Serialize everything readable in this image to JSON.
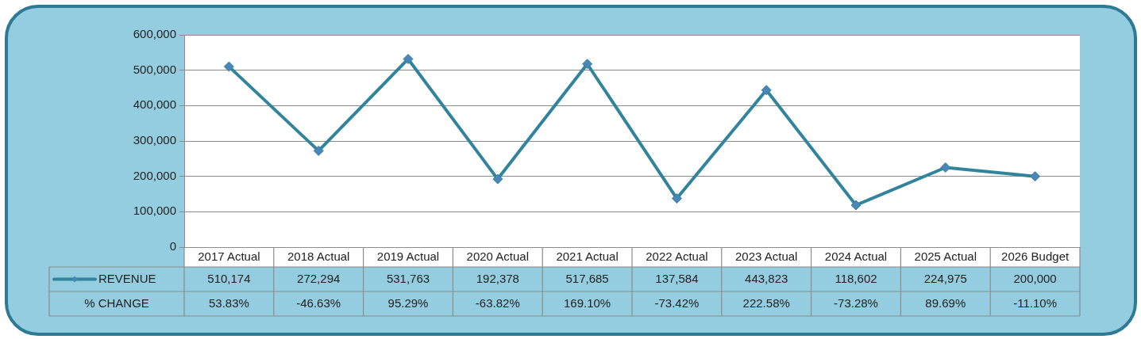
{
  "chart_data": {
    "type": "line",
    "categories": [
      "2017 Actual",
      "2018 Actual",
      "2019 Actual",
      "2020 Actual",
      "2021 Actual",
      "2022 Actual",
      "2023 Actual",
      "2024 Actual",
      "2025 Actual",
      "2026 Budget"
    ],
    "series": [
      {
        "name": "REVENUE",
        "color": "#31849b",
        "values": [
          510174,
          272294,
          531763,
          192378,
          517685,
          137584,
          443823,
          118602,
          224975,
          200000
        ],
        "value_labels": [
          "510,174",
          "272,294",
          "531,763",
          "192,378",
          "517,685",
          "137,584",
          "443,823",
          "118,602",
          "224,975",
          "200,000"
        ]
      }
    ],
    "annotations": [
      "% CHANGE",
      "53.83%",
      "-46.63%",
      "95.29%",
      "-63.82%",
      "169.10%",
      "-73.42%",
      "222.58%",
      "-73.28%",
      "89.69%",
      "-11.10%"
    ],
    "ylim": [
      0,
      600000
    ],
    "yticks": [
      0,
      {
        "value": 100000,
        "label": "100,000"
      },
      {
        "value": 200000,
        "label": "200,000"
      },
      {
        "value": 300000,
        "label": "300,000"
      },
      {
        "value": 400000,
        "label": "400,000"
      },
      {
        "value": 500000,
        "label": "500,000"
      },
      {
        "value": 600000,
        "label": "600,000"
      }
    ],
    "grid": "y",
    "legend": "bottom",
    "marker": "diamond",
    "line_style": "solid"
  }
}
